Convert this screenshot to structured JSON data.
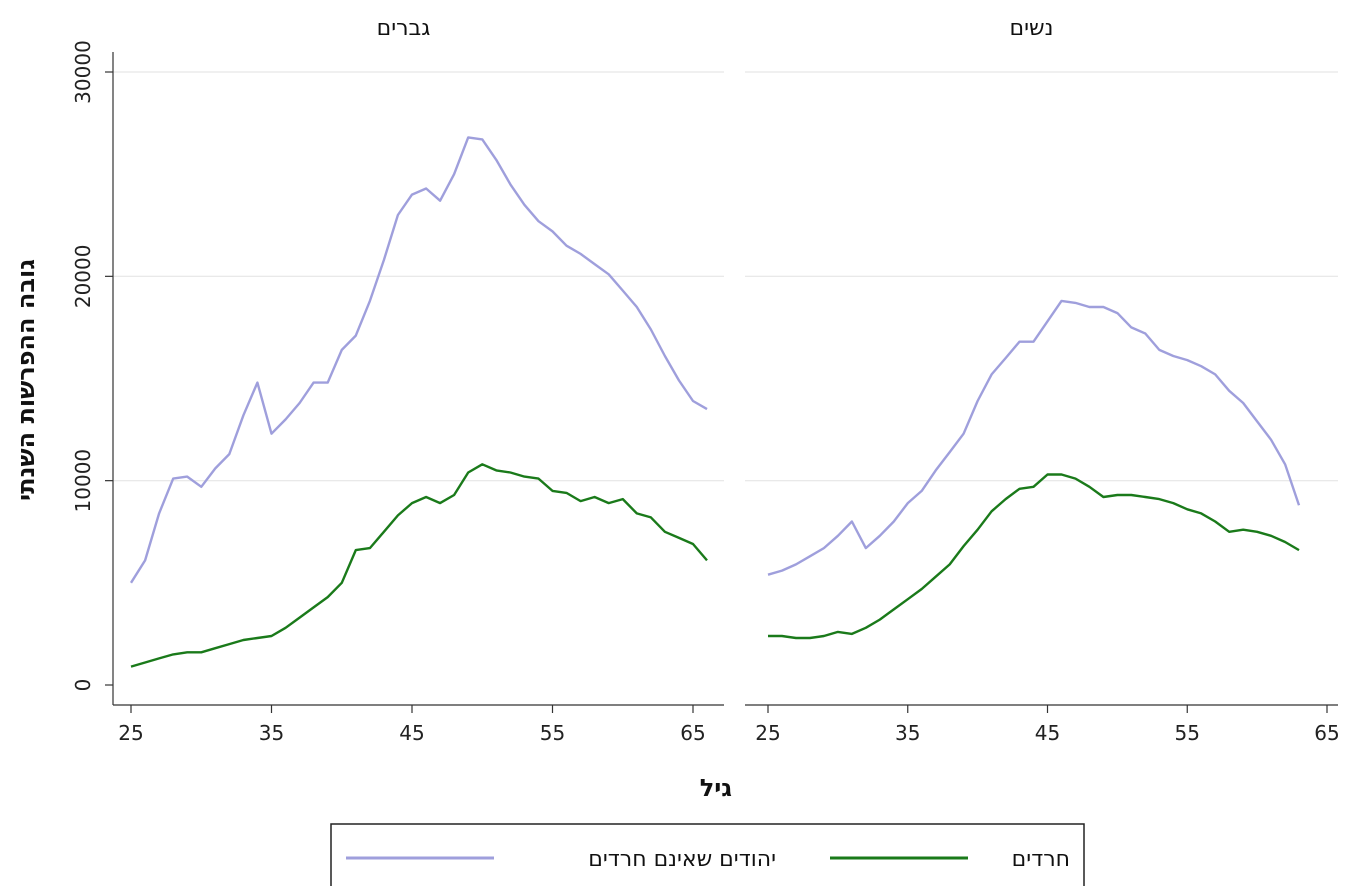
{
  "chart_data": {
    "type": "line",
    "xlabel": "גיל",
    "ylabel": "גובה ההפרשות השנתי",
    "xlim": [
      24,
      67
    ],
    "ylim": [
      0,
      30000
    ],
    "xticks": [
      25,
      35,
      45,
      55,
      65
    ],
    "yticks": [
      0,
      10000,
      20000,
      30000
    ],
    "grid": true,
    "legend_position": "bottom",
    "series_styles": [
      {
        "name": "יהודים שאינם חרדים",
        "color": "#9f9fdc"
      },
      {
        "name": "חרדים",
        "color": "#1a7a1a"
      }
    ],
    "panels": [
      {
        "title": "גברים",
        "series": [
          {
            "name": "יהודים שאינם חרדים",
            "x": [
              25,
              26,
              27,
              28,
              29,
              30,
              31,
              32,
              33,
              34,
              35,
              36,
              37,
              38,
              39,
              40,
              41,
              42,
              43,
              44,
              45,
              46,
              47,
              48,
              49,
              50,
              51,
              52,
              53,
              54,
              55,
              56,
              57,
              58,
              59,
              60,
              61,
              62,
              63,
              64,
              65,
              66
            ],
            "values": [
              5000,
              6100,
              8400,
              10100,
              10200,
              9700,
              10600,
              11300,
              13200,
              14800,
              12300,
              13000,
              13800,
              14800,
              14800,
              16400,
              17100,
              18800,
              20800,
              23000,
              24000,
              24300,
              23700,
              25000,
              26800,
              26700,
              25700,
              24500,
              23500,
              22700,
              22200,
              21500,
              21100,
              20600,
              20100,
              19300,
              18500,
              17400,
              16100,
              14900,
              13900,
              13500
            ]
          },
          {
            "name": "חרדים",
            "x": [
              25,
              26,
              27,
              28,
              29,
              30,
              31,
              32,
              33,
              34,
              35,
              36,
              37,
              38,
              39,
              40,
              41,
              42,
              43,
              44,
              45,
              46,
              47,
              48,
              49,
              50,
              51,
              52,
              53,
              54,
              55,
              56,
              57,
              58,
              59,
              60,
              61,
              62,
              63,
              64,
              65,
              66
            ],
            "values": [
              900,
              1100,
              1300,
              1500,
              1600,
              1600,
              1800,
              2000,
              2200,
              2300,
              2400,
              2800,
              3300,
              3800,
              4300,
              5000,
              6600,
              6700,
              7500,
              8300,
              8900,
              9200,
              8900,
              9300,
              10400,
              10800,
              10500,
              10400,
              10200,
              10100,
              9500,
              9400,
              9000,
              9200,
              8900,
              9100,
              8400,
              8200,
              7500,
              7200,
              6900,
              6100
            ]
          }
        ]
      },
      {
        "title": "נשים",
        "series": [
          {
            "name": "יהודים שאינם חרדים",
            "x": [
              25,
              26,
              27,
              28,
              29,
              30,
              31,
              32,
              33,
              34,
              35,
              36,
              37,
              38,
              39,
              40,
              41,
              42,
              43,
              44,
              45,
              46,
              47,
              48,
              49,
              50,
              51,
              52,
              53,
              54,
              55,
              56,
              57,
              58,
              59,
              60,
              61,
              62,
              63
            ],
            "values": [
              5400,
              5600,
              5900,
              6300,
              6700,
              7300,
              8000,
              6700,
              7300,
              8000,
              8900,
              9500,
              10500,
              11400,
              12300,
              13900,
              15200,
              16000,
              16800,
              16800,
              17800,
              18800,
              18700,
              18500,
              18500,
              18200,
              17500,
              17200,
              16400,
              16100,
              15900,
              15600,
              15200,
              14400,
              13800,
              12900,
              12000,
              10800,
              8800
            ]
          },
          {
            "name": "חרדים",
            "x": [
              25,
              26,
              27,
              28,
              29,
              30,
              31,
              32,
              33,
              34,
              35,
              36,
              37,
              38,
              39,
              40,
              41,
              42,
              43,
              44,
              45,
              46,
              47,
              48,
              49,
              50,
              51,
              52,
              53,
              54,
              55,
              56,
              57,
              58,
              59,
              60,
              61,
              62,
              63
            ],
            "values": [
              2400,
              2400,
              2300,
              2300,
              2400,
              2600,
              2500,
              2800,
              3200,
              3700,
              4200,
              4700,
              5300,
              5900,
              6800,
              7600,
              8500,
              9100,
              9600,
              9700,
              10300,
              10300,
              10100,
              9700,
              9200,
              9300,
              9300,
              9200,
              9100,
              8900,
              8600,
              8400,
              8000,
              7500,
              7600,
              7500,
              7300,
              7000,
              6600
            ]
          }
        ]
      }
    ]
  }
}
